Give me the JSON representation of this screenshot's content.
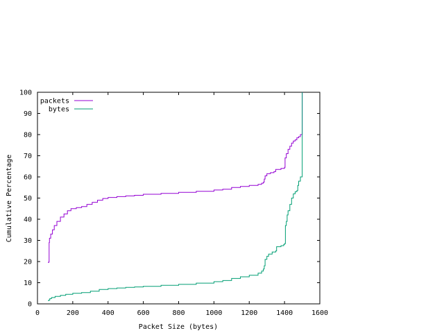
{
  "chart_data": {
    "type": "line",
    "title": "",
    "xlabel": "Packet Size (bytes)",
    "ylabel": "Cumulative Percentage",
    "xlim": [
      0,
      1600
    ],
    "ylim": [
      0,
      100
    ],
    "xticks": [
      0,
      200,
      400,
      600,
      800,
      1000,
      1200,
      1400,
      1600
    ],
    "yticks": [
      0,
      10,
      20,
      30,
      40,
      50,
      60,
      70,
      80,
      90,
      100
    ],
    "grid": false,
    "legend_position": "top-left",
    "series": [
      {
        "name": "packets",
        "color": "#9400d3",
        "points": [
          [
            60,
            19.5
          ],
          [
            64,
            20
          ],
          [
            66,
            29
          ],
          [
            68,
            31
          ],
          [
            75,
            33
          ],
          [
            85,
            35
          ],
          [
            95,
            37
          ],
          [
            110,
            39
          ],
          [
            130,
            41
          ],
          [
            150,
            42.5
          ],
          [
            170,
            44
          ],
          [
            190,
            45
          ],
          [
            220,
            45.5
          ],
          [
            250,
            46
          ],
          [
            280,
            47
          ],
          [
            310,
            48
          ],
          [
            340,
            49
          ],
          [
            370,
            49.8
          ],
          [
            400,
            50.3
          ],
          [
            450,
            50.7
          ],
          [
            500,
            51
          ],
          [
            550,
            51.3
          ],
          [
            600,
            51.8
          ],
          [
            700,
            52.2
          ],
          [
            800,
            52.7
          ],
          [
            900,
            53.2
          ],
          [
            1000,
            53.8
          ],
          [
            1050,
            54.2
          ],
          [
            1100,
            55
          ],
          [
            1150,
            55.5
          ],
          [
            1200,
            56
          ],
          [
            1250,
            56.5
          ],
          [
            1270,
            57
          ],
          [
            1280,
            57.5
          ],
          [
            1285,
            59
          ],
          [
            1290,
            60.5
          ],
          [
            1300,
            61.5
          ],
          [
            1320,
            62
          ],
          [
            1340,
            62.5
          ],
          [
            1350,
            63.5
          ],
          [
            1380,
            64
          ],
          [
            1400,
            64.5
          ],
          [
            1403,
            69
          ],
          [
            1410,
            71
          ],
          [
            1420,
            73
          ],
          [
            1430,
            74.5
          ],
          [
            1440,
            76
          ],
          [
            1450,
            77
          ],
          [
            1460,
            77.5
          ],
          [
            1470,
            78.5
          ],
          [
            1480,
            79
          ],
          [
            1490,
            80
          ],
          [
            1500,
            100
          ]
        ]
      },
      {
        "name": "bytes",
        "color": "#009e73",
        "points": [
          [
            60,
            1.5
          ],
          [
            64,
            1.8
          ],
          [
            70,
            2.5
          ],
          [
            80,
            3
          ],
          [
            100,
            3.5
          ],
          [
            130,
            4
          ],
          [
            160,
            4.5
          ],
          [
            200,
            5
          ],
          [
            250,
            5.3
          ],
          [
            300,
            6
          ],
          [
            350,
            6.8
          ],
          [
            400,
            7.2
          ],
          [
            450,
            7.5
          ],
          [
            500,
            7.8
          ],
          [
            550,
            8
          ],
          [
            600,
            8.3
          ],
          [
            700,
            8.8
          ],
          [
            800,
            9.2
          ],
          [
            900,
            9.8
          ],
          [
            1000,
            10.5
          ],
          [
            1050,
            11
          ],
          [
            1100,
            12
          ],
          [
            1150,
            12.8
          ],
          [
            1200,
            13.5
          ],
          [
            1250,
            14.5
          ],
          [
            1270,
            15.5
          ],
          [
            1280,
            16.5
          ],
          [
            1285,
            18
          ],
          [
            1290,
            21
          ],
          [
            1300,
            22.5
          ],
          [
            1310,
            23.5
          ],
          [
            1330,
            24.5
          ],
          [
            1350,
            25
          ],
          [
            1355,
            27
          ],
          [
            1380,
            27.5
          ],
          [
            1395,
            28
          ],
          [
            1400,
            28.5
          ],
          [
            1405,
            37
          ],
          [
            1410,
            39
          ],
          [
            1415,
            42
          ],
          [
            1420,
            44
          ],
          [
            1430,
            47
          ],
          [
            1440,
            50
          ],
          [
            1450,
            52
          ],
          [
            1460,
            53
          ],
          [
            1470,
            53.5
          ],
          [
            1475,
            56
          ],
          [
            1480,
            58
          ],
          [
            1490,
            60
          ],
          [
            1500,
            100
          ]
        ]
      }
    ]
  }
}
